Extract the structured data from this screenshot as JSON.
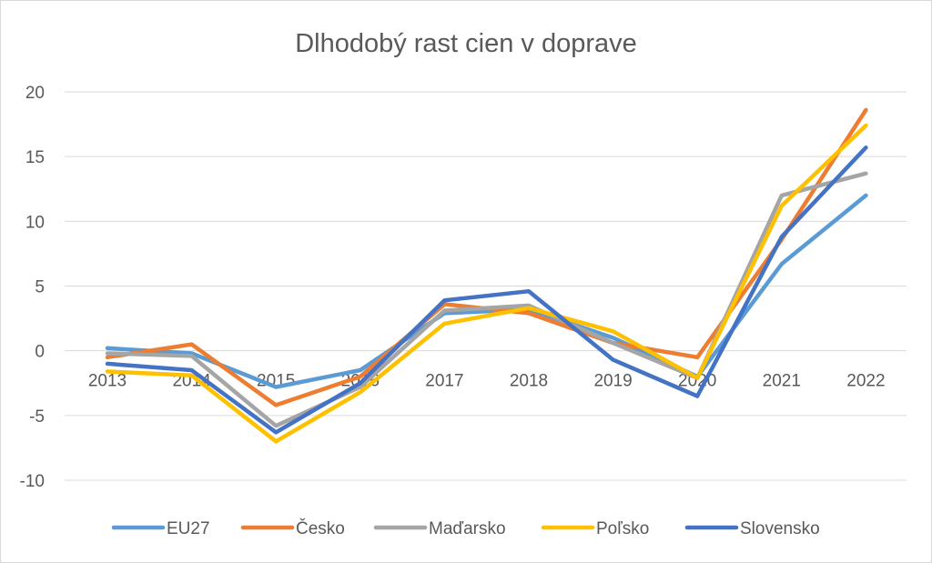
{
  "chart_data": {
    "type": "line",
    "title": "Dlhodobý rast cien v doprave",
    "xlabel": "",
    "ylabel": "",
    "categories": [
      "2013",
      "2014",
      "2015",
      "2016",
      "2017",
      "2018",
      "2019",
      "2020",
      "2021",
      "2022"
    ],
    "ylim": [
      -10,
      20
    ],
    "yticks": [
      20,
      15,
      10,
      5,
      0,
      -5,
      -10
    ],
    "ytick_labels": [
      "20",
      "15",
      "10",
      "5",
      "0",
      "-5",
      "-10"
    ],
    "grid": true,
    "legend_position": "bottom",
    "series": [
      {
        "name": "EU27",
        "color": "#5b9bd5",
        "values": [
          0.2,
          -0.2,
          -2.8,
          -1.5,
          2.9,
          3.2,
          1.0,
          -2.0,
          6.7,
          12.0
        ]
      },
      {
        "name": "Česko",
        "color": "#ed7d31",
        "values": [
          -0.5,
          0.5,
          -4.2,
          -2.0,
          3.6,
          2.9,
          0.6,
          -0.5,
          8.6,
          18.6
        ]
      },
      {
        "name": "Maďarsko",
        "color": "#a5a5a5",
        "values": [
          -0.2,
          -0.4,
          -5.8,
          -2.8,
          3.1,
          3.5,
          0.6,
          -2.1,
          12.0,
          13.7
        ]
      },
      {
        "name": "Poľsko",
        "color": "#ffc000",
        "values": [
          -1.6,
          -1.9,
          -7.0,
          -3.2,
          2.1,
          3.3,
          1.5,
          -2.1,
          11.2,
          17.4
        ]
      },
      {
        "name": "Slovensko",
        "color": "#4472c4",
        "values": [
          -1.0,
          -1.5,
          -6.3,
          -2.5,
          3.9,
          4.6,
          -0.7,
          -3.5,
          8.8,
          15.7
        ]
      }
    ]
  }
}
